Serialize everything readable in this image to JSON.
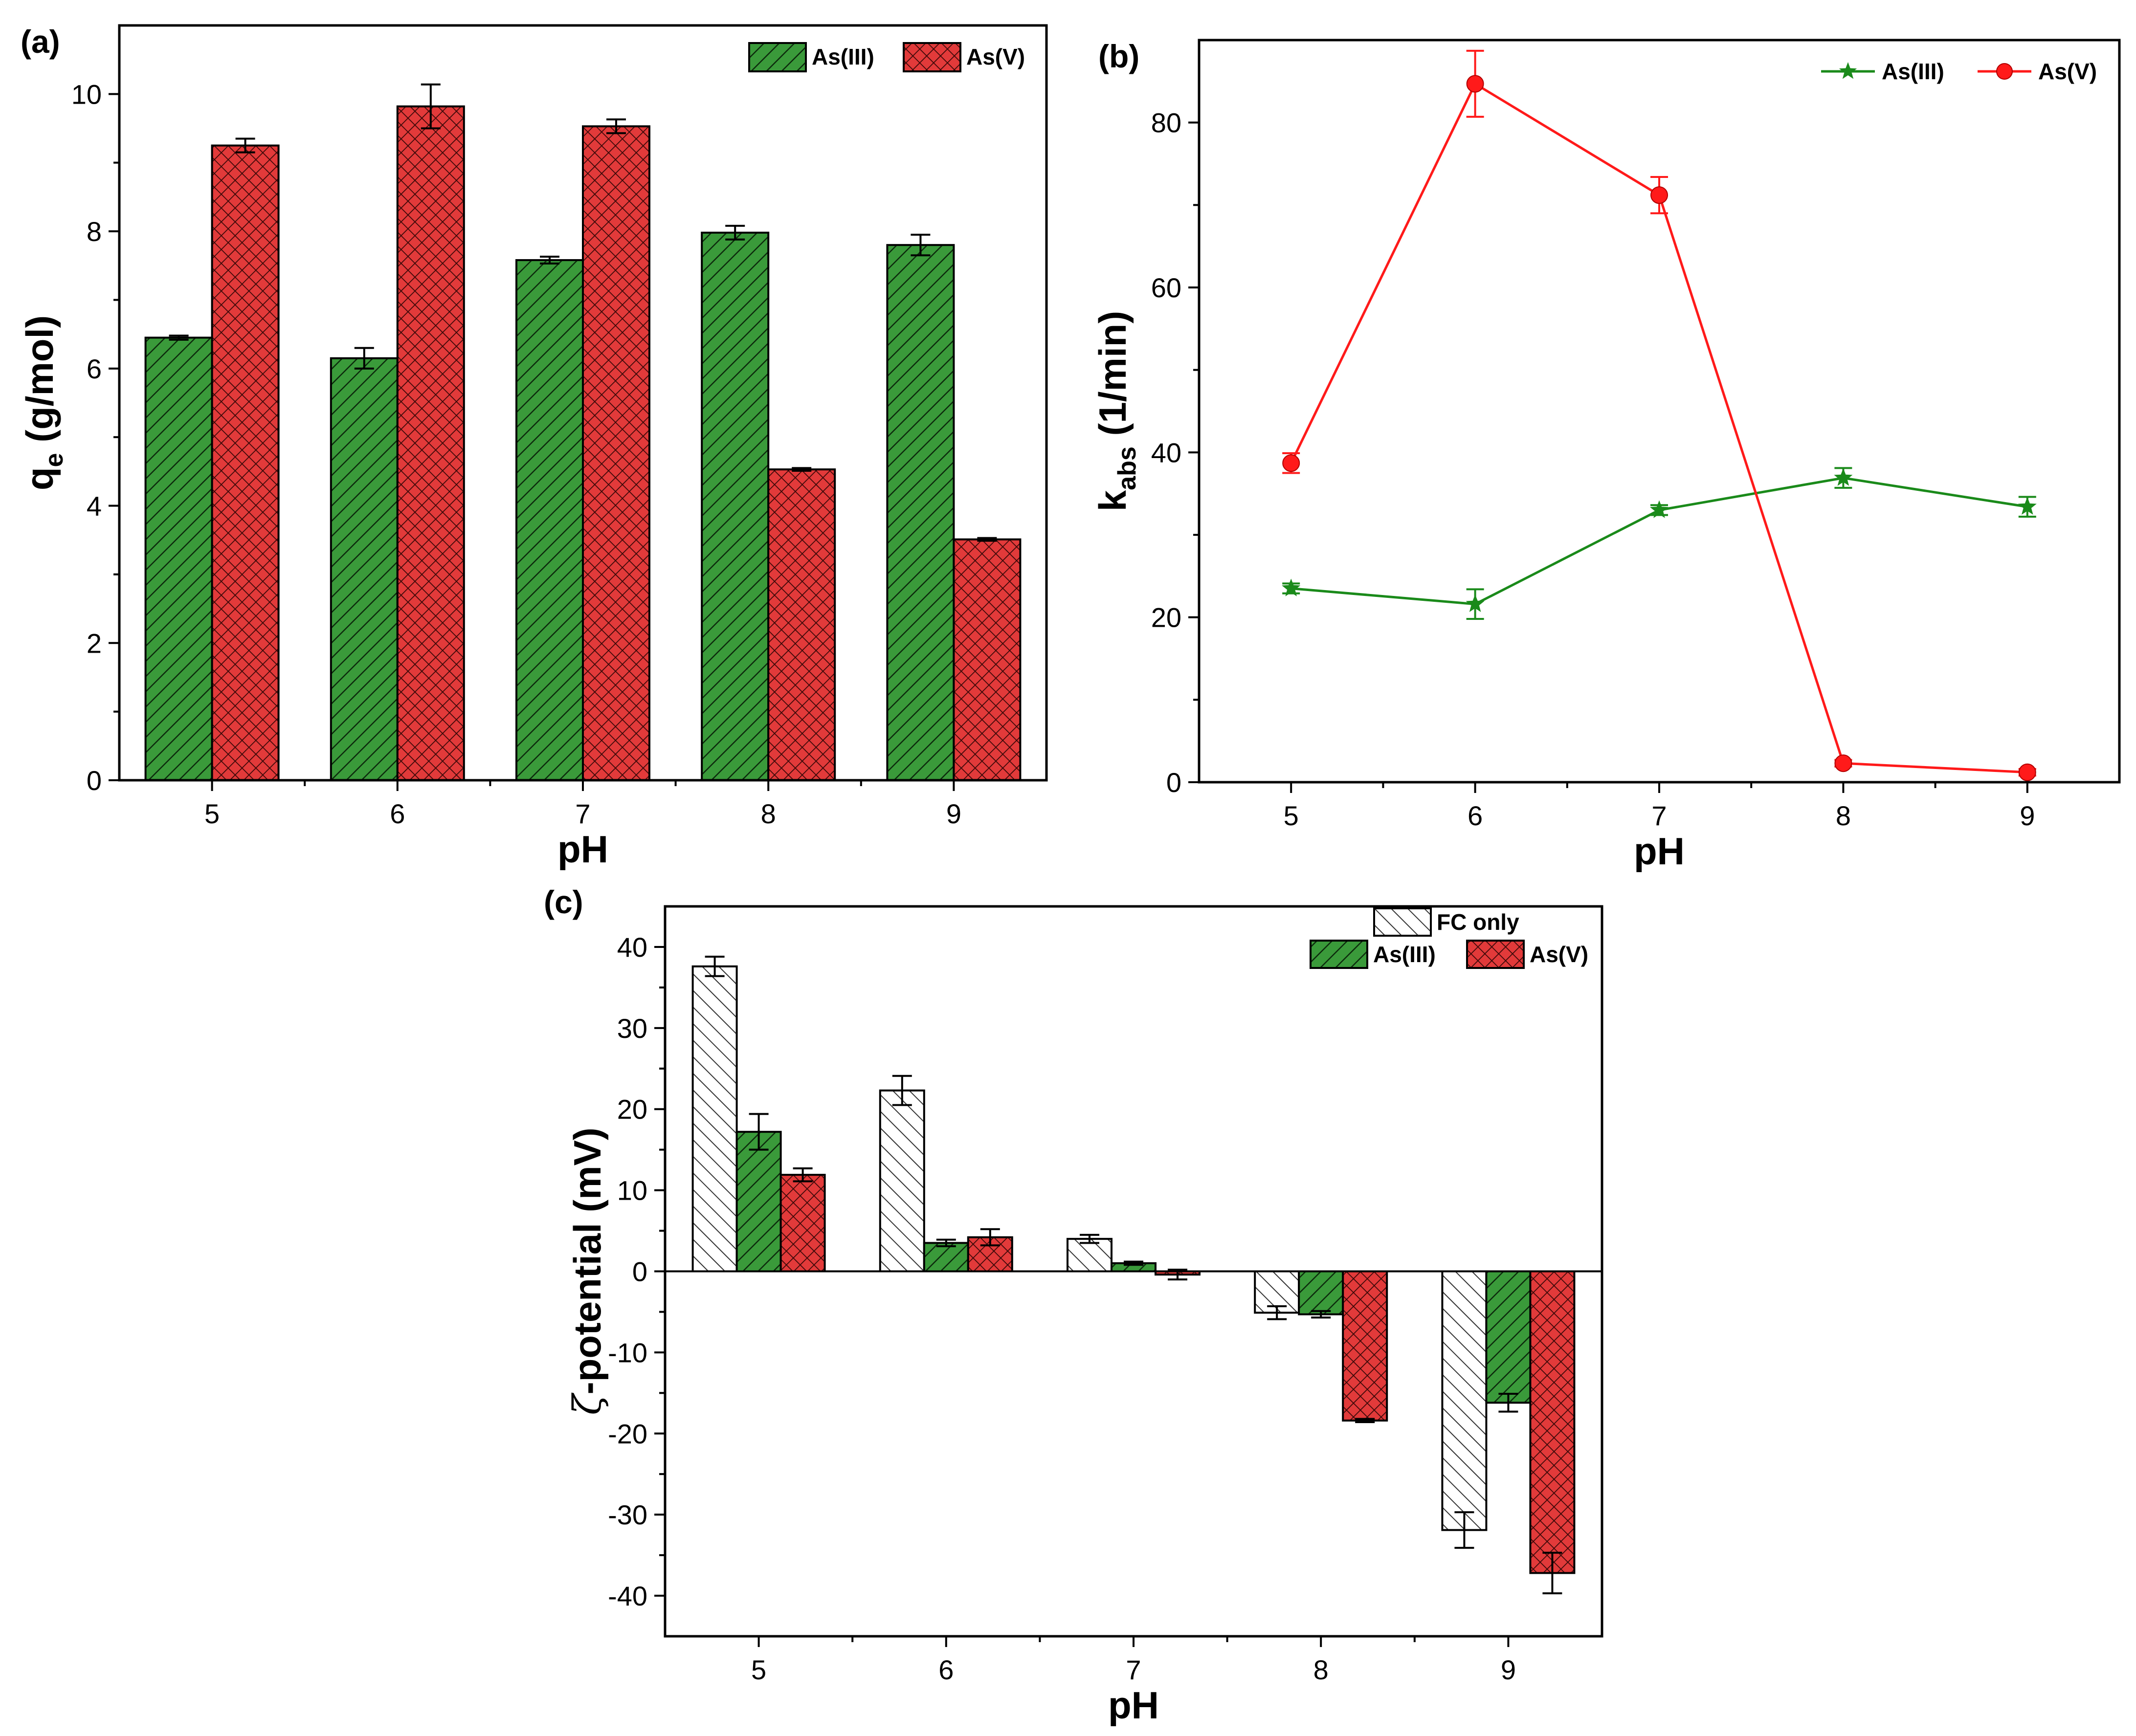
{
  "colors": {
    "green": "#3a9a3a",
    "red": "#e23a3a",
    "line_green": "#1a8a1a",
    "line_red": "#ff1a1a",
    "white": "#ffffff",
    "axis": "#000000"
  },
  "chart_data": [
    {
      "id": "a",
      "type": "bar",
      "panel_label": "(a)",
      "xlabel": "pH",
      "ylabel_main": "q",
      "ylabel_sub": "e",
      "ylabel_rest": " (g/mol)",
      "categories": [
        "5",
        "6",
        "7",
        "8",
        "9"
      ],
      "ylim": [
        0,
        11
      ],
      "yticks": [
        0,
        2,
        4,
        6,
        8,
        10
      ],
      "ytick_labels": [
        "0",
        "2",
        "4",
        "6",
        "8",
        "10"
      ],
      "legend_position": "top-right",
      "series": [
        {
          "name": "As(III)",
          "color_key": "green",
          "pattern": "hatch",
          "values": [
            6.45,
            6.15,
            7.58,
            7.98,
            7.8
          ],
          "errors": [
            0.03,
            0.15,
            0.05,
            0.1,
            0.15
          ]
        },
        {
          "name": "As(V)",
          "color_key": "red",
          "pattern": "cross",
          "values": [
            9.25,
            9.82,
            9.53,
            4.53,
            3.51
          ],
          "errors": [
            0.1,
            0.32,
            0.1,
            0.02,
            0.02
          ]
        }
      ]
    },
    {
      "id": "b",
      "type": "line",
      "panel_label": "(b)",
      "xlabel": "pH",
      "ylabel_main": "k",
      "ylabel_sub": "abs",
      "ylabel_rest": " (1/min)",
      "x": [
        5,
        6,
        7,
        8,
        9
      ],
      "xtick_labels": [
        "5",
        "6",
        "7",
        "8",
        "9"
      ],
      "xlim": [
        4.5,
        9.5
      ],
      "ylim": [
        0,
        90
      ],
      "yticks": [
        0,
        20,
        40,
        60,
        80
      ],
      "ytick_labels": [
        "0",
        "20",
        "40",
        "60",
        "80"
      ],
      "legend_position": "top-right",
      "series": [
        {
          "name": "As(III)",
          "color_key": "line_green",
          "marker": "star",
          "values": [
            23.5,
            21.6,
            33.0,
            36.9,
            33.4
          ],
          "errors": [
            0.6,
            1.8,
            0.6,
            1.2,
            1.2
          ]
        },
        {
          "name": "As(V)",
          "color_key": "line_red",
          "marker": "circle",
          "values": [
            38.7,
            84.7,
            71.2,
            2.3,
            1.2
          ],
          "errors": [
            1.2,
            4.0,
            2.2,
            0.4,
            0.4
          ]
        }
      ]
    },
    {
      "id": "c",
      "type": "bar",
      "panel_label": "(c)",
      "xlabel": "pH",
      "ylabel_zeta": "ζ",
      "ylabel_rest": "-potential (mV)",
      "categories": [
        "5",
        "6",
        "7",
        "8",
        "9"
      ],
      "ylim": [
        -45,
        45
      ],
      "yticks": [
        -40,
        -30,
        -20,
        -10,
        0,
        10,
        20,
        30,
        40
      ],
      "ytick_labels": [
        "-40",
        "-30",
        "-20",
        "-10",
        "0",
        "10",
        "20",
        "30",
        "40"
      ],
      "legend_position": "top-right",
      "series": [
        {
          "name": "FC only",
          "color_key": "white",
          "pattern": "hatch-gray",
          "values": [
            37.6,
            22.3,
            4.0,
            -5.1,
            -31.9
          ],
          "errors": [
            1.2,
            1.8,
            0.5,
            0.8,
            2.2
          ]
        },
        {
          "name": "As(III)",
          "color_key": "green",
          "pattern": "hatch",
          "values": [
            17.2,
            3.5,
            1.0,
            -5.3,
            -16.2
          ],
          "errors": [
            2.2,
            0.4,
            0.2,
            0.4,
            1.1
          ]
        },
        {
          "name": "As(V)",
          "color_key": "red",
          "pattern": "cross",
          "values": [
            11.9,
            4.2,
            -0.4,
            -18.4,
            -37.2
          ],
          "errors": [
            0.8,
            1.0,
            0.6,
            0.2,
            2.5
          ]
        }
      ]
    }
  ]
}
